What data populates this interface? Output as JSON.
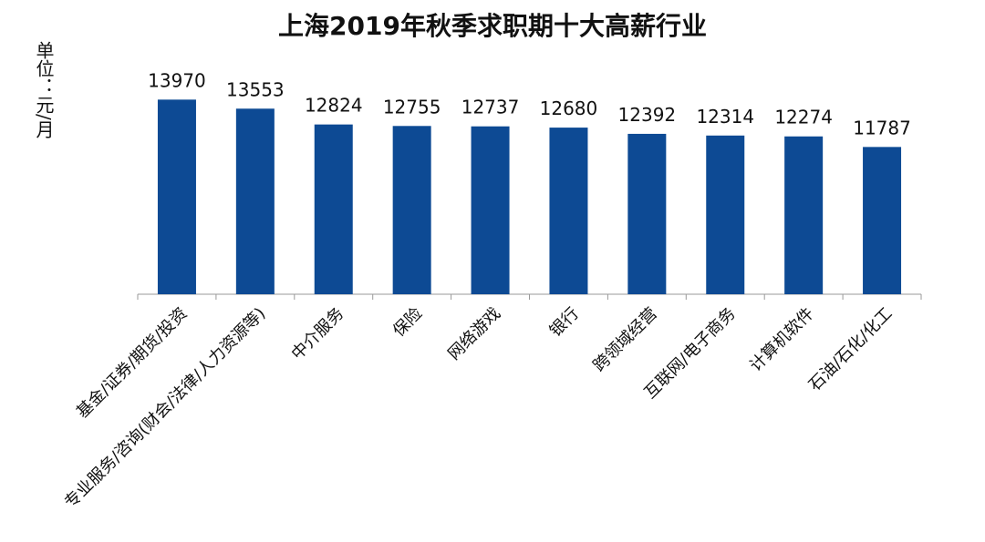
{
  "chart_data": {
    "type": "bar",
    "title": "上海2019年秋季求职期十大高薪行业",
    "y_label": "单位：元/月",
    "categories": [
      "基金/证券/期货/投资",
      "专业服务/咨询(财会/法律/人力资源等)",
      "中介服务",
      "保险",
      "网络游戏",
      "银行",
      "跨领域经营",
      "互联网/电子商务",
      "计算机软件",
      "石油/石化/化工"
    ],
    "values": [
      13970,
      13553,
      12824,
      12755,
      12737,
      12680,
      12392,
      12314,
      12274,
      11787
    ],
    "color": "#0d4a94",
    "ylim": [
      5000,
      16000
    ]
  }
}
